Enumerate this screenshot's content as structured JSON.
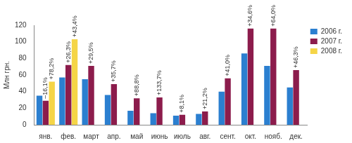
{
  "chart_data": {
    "type": "bar",
    "y_label": "Млн грн.",
    "categories": [
      "янв.",
      "фев.",
      "март",
      "апр.",
      "май",
      "июнь",
      "июль",
      "авг.",
      "сент.",
      "окт.",
      "нояб.",
      "дек."
    ],
    "series": [
      {
        "name": "2006 г.",
        "color": "#2b7fd0",
        "values": [
          35,
          57,
          55,
          36,
          17,
          14,
          11,
          13,
          40,
          86,
          71,
          45
        ]
      },
      {
        "name": "2007 г.",
        "color": "#8c1c4c",
        "values": [
          29,
          72,
          71,
          49,
          32,
          33,
          12,
          16,
          56,
          116,
          116,
          66
        ]
      },
      {
        "name": "2008 г.",
        "color": "#f5d547",
        "values": [
          52,
          103,
          null,
          null,
          null,
          null,
          null,
          null,
          null,
          null,
          null,
          null
        ]
      }
    ],
    "ylim": [
      0,
      120
    ],
    "yticks": [
      0,
      20,
      40,
      60,
      80,
      100,
      120
    ],
    "grid": false,
    "legend": "right",
    "annotations": [
      {
        "category": "янв.",
        "series": "2007 г.",
        "text": "–16,1%"
      },
      {
        "category": "янв.",
        "series": "2008 г.",
        "text": "+78,2%"
      },
      {
        "category": "фев.",
        "series": "2007 г.",
        "text": "+26,3%"
      },
      {
        "category": "фев.",
        "series": "2008 г.",
        "text": "+43,4%"
      },
      {
        "category": "март",
        "series": "2007 г.",
        "text": "+29,5%"
      },
      {
        "category": "апр.",
        "series": "2007 г.",
        "text": "+35,7%"
      },
      {
        "category": "май",
        "series": "2007 г.",
        "text": "+88,8%"
      },
      {
        "category": "июнь",
        "series": "2007 г.",
        "text": "+133,7%"
      },
      {
        "category": "июль",
        "series": "2007 г.",
        "text": "+8,1%"
      },
      {
        "category": "авг.",
        "series": "2007 г.",
        "text": "+21,2%"
      },
      {
        "category": "сент.",
        "series": "2007 г.",
        "text": "+41,0%"
      },
      {
        "category": "окт.",
        "series": "2007 г.",
        "text": "+34,6%"
      },
      {
        "category": "нояб.",
        "series": "2007 г.",
        "text": "+64,0%"
      },
      {
        "category": "дек.",
        "series": "2007 г.",
        "text": "+46,3%"
      }
    ]
  }
}
